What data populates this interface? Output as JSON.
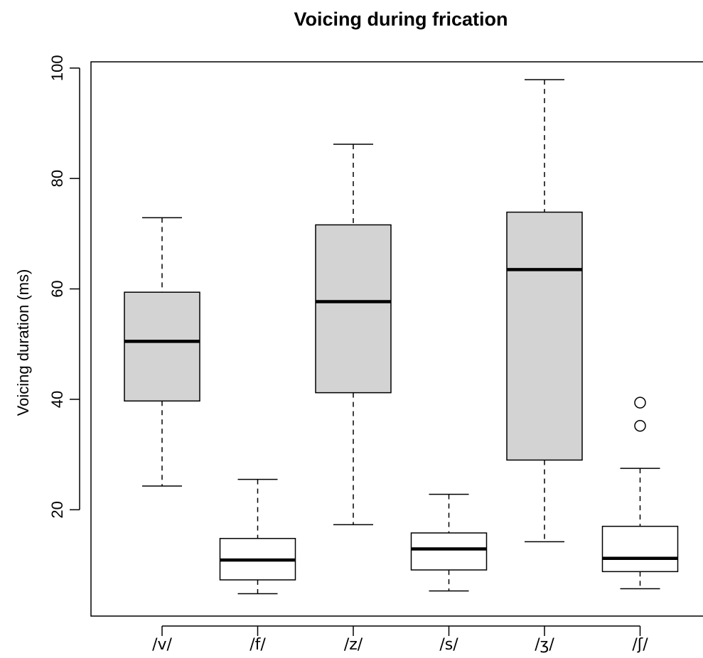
{
  "chart_data": {
    "type": "boxplot",
    "title": "Voicing during frication",
    "xlabel": "",
    "ylabel": "Voicing duration (ms)",
    "ylim": [
      1,
      101
    ],
    "yticks": [
      20,
      40,
      60,
      80,
      100
    ],
    "categories": [
      "/v/",
      "/f/",
      "/z/",
      "/s/",
      "/ʒ/",
      "/ʃ/"
    ],
    "boxes": [
      {
        "label": "/v/",
        "min": 24.3,
        "q1": 39.7,
        "median": 50.5,
        "q3": 59.4,
        "max": 72.9,
        "outliers": [],
        "fill": "#d3d3d3"
      },
      {
        "label": "/f/",
        "min": 4.8,
        "q1": 7.3,
        "median": 10.9,
        "q3": 14.8,
        "max": 25.5,
        "outliers": [],
        "fill": "#ffffff"
      },
      {
        "label": "/z/",
        "min": 17.3,
        "q1": 41.2,
        "median": 57.7,
        "q3": 71.6,
        "max": 86.2,
        "outliers": [],
        "fill": "#d3d3d3"
      },
      {
        "label": "/s/",
        "min": 5.3,
        "q1": 9.1,
        "median": 12.9,
        "q3": 15.8,
        "max": 22.8,
        "outliers": [],
        "fill": "#ffffff"
      },
      {
        "label": "/ʒ/",
        "min": 14.2,
        "q1": 29.0,
        "median": 63.5,
        "q3": 73.9,
        "max": 97.9,
        "outliers": [],
        "fill": "#d3d3d3"
      },
      {
        "label": "/ʃ/",
        "min": 5.7,
        "q1": 8.8,
        "median": 11.2,
        "q3": 17.0,
        "max": 27.5,
        "outliers": [
          35.2,
          39.4
        ],
        "fill": "#ffffff"
      }
    ]
  }
}
